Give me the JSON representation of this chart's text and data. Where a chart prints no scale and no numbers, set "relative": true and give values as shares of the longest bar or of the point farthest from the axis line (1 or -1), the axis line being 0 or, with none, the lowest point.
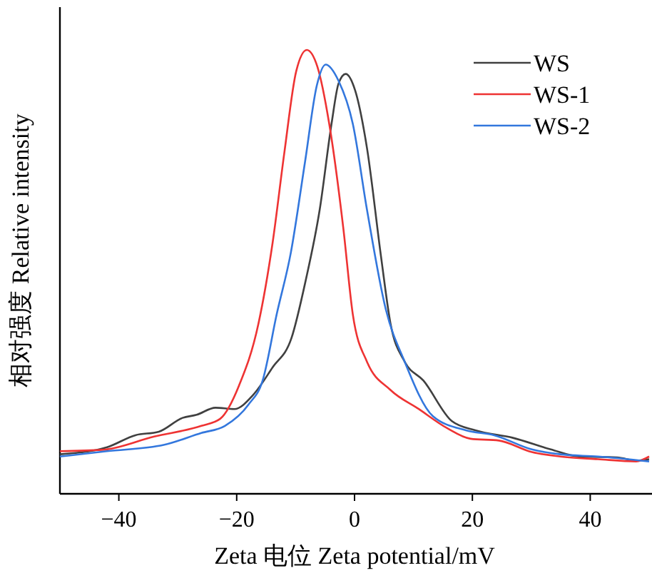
{
  "chart_data": {
    "type": "line",
    "relative": true,
    "xlabel": "Zeta 电位 Zeta potential/mV",
    "ylabel": "相对强度 Relative intensity",
    "xlim": [
      -50,
      50
    ],
    "xticks": [
      {
        "value": -40,
        "label": "−40"
      },
      {
        "value": -20,
        "label": "−20"
      },
      0,
      20,
      40
    ],
    "legend": "top right",
    "tick_labels": "x",
    "series": [
      {
        "name": "WS",
        "color": "#404040",
        "x": [
          -50,
          -42,
          -37.2,
          -33.2,
          -29.2,
          -26.8,
          -23.6,
          -20.4,
          -17.2,
          -13.9,
          -10.7,
          -8.3,
          -5.9,
          -3.9,
          -2.7,
          -1.5,
          0.1,
          2.1,
          4.5,
          6.1,
          8.5,
          11.7,
          16.5,
          20.5,
          26.9,
          33.3,
          38.1,
          44.6,
          47.8,
          50
        ],
        "values": [
          0.089,
          0.105,
          0.132,
          0.14,
          0.171,
          0.178,
          0.194,
          0.191,
          0.223,
          0.285,
          0.351,
          0.48,
          0.641,
          0.834,
          0.925,
          0.946,
          0.909,
          0.78,
          0.534,
          0.384,
          0.298,
          0.255,
          0.164,
          0.143,
          0.126,
          0.1,
          0.084,
          0.082,
          0.075,
          0.078
        ]
      },
      {
        "name": "WS-1",
        "color": "#ee3333",
        "x": [
          -50,
          -42.8,
          -34,
          -26,
          -22.8,
          -19.6,
          -16.3,
          -13.9,
          -11.9,
          -9.9,
          -8.1,
          -6.3,
          -4.3,
          -1.9,
          -0.3,
          2.1,
          6.1,
          10.9,
          15.7,
          19.7,
          24.5,
          30.1,
          34.9,
          41.3,
          47.8,
          50
        ],
        "values": [
          0.096,
          0.099,
          0.129,
          0.153,
          0.169,
          0.244,
          0.384,
          0.566,
          0.77,
          0.952,
          1,
          0.962,
          0.834,
          0.598,
          0.405,
          0.298,
          0.234,
          0.191,
          0.148,
          0.124,
          0.12,
          0.094,
          0.084,
          0.078,
          0.073,
          0.084
        ]
      },
      {
        "name": "WS-2",
        "color": "#3377dd",
        "x": [
          -50,
          -42,
          -32.4,
          -26,
          -22,
          -18,
          -15.6,
          -13.2,
          -10.8,
          -8.4,
          -6.4,
          -4.9,
          -2.7,
          -0.3,
          2.1,
          5.3,
          8.5,
          13.3,
          18.9,
          23.7,
          30.1,
          34.9,
          41.3,
          50
        ],
        "values": [
          0.084,
          0.096,
          0.11,
          0.137,
          0.153,
          0.201,
          0.255,
          0.405,
          0.544,
          0.748,
          0.92,
          0.967,
          0.93,
          0.834,
          0.641,
          0.416,
          0.298,
          0.175,
          0.143,
          0.132,
          0.1,
          0.089,
          0.084,
          0.073
        ]
      }
    ]
  }
}
